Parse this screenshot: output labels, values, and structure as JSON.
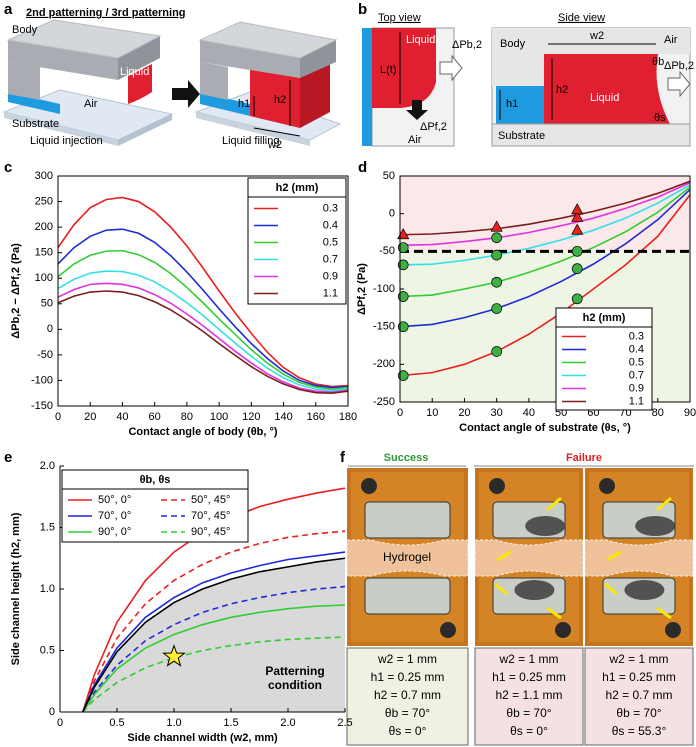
{
  "panel_labels": [
    "a",
    "b",
    "c",
    "d",
    "e",
    "f"
  ],
  "panel_a": {
    "title": "2nd patterning / 3rd patterning",
    "body": "Body",
    "liquid": "Liquid",
    "air": "Air",
    "substrate": "Substrate",
    "h1": "h1",
    "h2": "h2",
    "w2": "w2",
    "caption_left": "Liquid injection",
    "caption_right": "Liquid filling"
  },
  "panel_b": {
    "top_view": "Top view",
    "side_view": "Side view",
    "top_liquid": "Liquid",
    "length": "L(t)",
    "top_dpb": "ΔPb,2",
    "top_dpf": "ΔPf,2",
    "top_air": "Air",
    "body": "Body",
    "w2": "w2",
    "side_air": "Air",
    "theta_b": "θb",
    "side_dpb": "ΔPb,2",
    "h2": "h2",
    "side_liquid": "Liquid",
    "h1": "h1",
    "theta_s": "θs",
    "substrate": "Substrate"
  },
  "chart_data": [
    {
      "type": "line",
      "xlabel": "Contact angle of body (θb, °)",
      "ylabel": "ΔPb,2 − ΔPf,2 (Pa)",
      "legend_title": "h2 (mm)",
      "legend": "upper right",
      "x": [
        0,
        10,
        20,
        30,
        40,
        50,
        60,
        70,
        80,
        90,
        100,
        110,
        120,
        130,
        140,
        150,
        160,
        170,
        180
      ],
      "xlim": [
        0,
        180
      ],
      "xticks": [
        0,
        20,
        40,
        60,
        80,
        100,
        120,
        140,
        160,
        180
      ],
      "ylim": [
        -150,
        300
      ],
      "yticks": [
        -150,
        -100,
        -50,
        0,
        50,
        100,
        150,
        200,
        250,
        300
      ],
      "series": [
        {
          "name": "0.3",
          "color": "#e8201e",
          "values": [
            160,
            205,
            238,
            254,
            258,
            250,
            230,
            200,
            163,
            120,
            75,
            32,
            -8,
            -45,
            -75,
            -95,
            -107,
            -112,
            -110
          ]
        },
        {
          "name": "0.4",
          "color": "#1f2bd6",
          "values": [
            128,
            160,
            182,
            194,
            196,
            188,
            170,
            144,
            112,
            77,
            40,
            5,
            -28,
            -57,
            -82,
            -100,
            -110,
            -114,
            -112
          ]
        },
        {
          "name": "0.5",
          "color": "#33cc33",
          "values": [
            103,
            128,
            145,
            153,
            154,
            146,
            131,
            109,
            82,
            52,
            20,
            -10,
            -40,
            -66,
            -88,
            -104,
            -113,
            -117,
            -114
          ]
        },
        {
          "name": "0.7",
          "color": "#33e0e6",
          "values": [
            80,
            98,
            110,
            114,
            113,
            106,
            93,
            74,
            52,
            27,
            0,
            -27,
            -53,
            -76,
            -95,
            -109,
            -117,
            -120,
            -117
          ]
        },
        {
          "name": "0.9",
          "color": "#e033e0",
          "values": [
            63,
            78,
            88,
            90,
            88,
            81,
            68,
            51,
            30,
            7,
            -18,
            -43,
            -66,
            -87,
            -103,
            -115,
            -121,
            -123,
            -119
          ]
        },
        {
          "name": "1.1",
          "color": "#7a1e1e",
          "values": [
            52,
            65,
            73,
            75,
            73,
            66,
            54,
            38,
            18,
            -4,
            -28,
            -51,
            -73,
            -92,
            -107,
            -118,
            -124,
            -125,
            -121
          ]
        }
      ]
    },
    {
      "type": "line",
      "xlabel": "Contact angle of substrate (θs, °)",
      "ylabel": "ΔPf,2 (Pa)",
      "legend_title": "h2 (mm)",
      "legend": "lower right",
      "x": [
        0,
        10,
        20,
        30,
        40,
        50,
        60,
        70,
        80,
        90
      ],
      "xlim": [
        0,
        90
      ],
      "xticks": [
        0,
        10,
        20,
        30,
        40,
        50,
        60,
        70,
        80,
        90
      ],
      "ylim": [
        -250,
        50
      ],
      "yticks": [
        -250,
        -200,
        -150,
        -100,
        -50,
        0,
        50
      ],
      "threshold": -50,
      "series": [
        {
          "name": "0.3",
          "color": "#e8201e",
          "values": [
            -215,
            -211,
            -200,
            -183,
            -160,
            -132,
            -100,
            -68,
            -30,
            25
          ]
        },
        {
          "name": "0.4",
          "color": "#1f2bd6",
          "values": [
            -150,
            -147,
            -138,
            -126,
            -110,
            -90,
            -67,
            -40,
            -8,
            32
          ]
        },
        {
          "name": "0.5",
          "color": "#33cc33",
          "values": [
            -110,
            -108,
            -100,
            -91,
            -78,
            -63,
            -45,
            -24,
            2,
            35
          ]
        },
        {
          "name": "0.7",
          "color": "#33e0e6",
          "values": [
            -68,
            -67,
            -62,
            -55,
            -46,
            -35,
            -22,
            -6,
            14,
            38
          ]
        },
        {
          "name": "0.9",
          "color": "#e033e0",
          "values": [
            -42,
            -41,
            -37,
            -32,
            -25,
            -16,
            -6,
            7,
            22,
            41
          ]
        },
        {
          "name": "1.1",
          "color": "#7a1e1e",
          "values": [
            -28,
            -27,
            -24,
            -20,
            -14,
            -6,
            3,
            14,
            27,
            43
          ]
        }
      ],
      "points": [
        {
          "marker": "circle",
          "color": "#3cb043",
          "x": [
            1,
            1,
            1,
            1,
            1,
            30,
            30,
            30,
            30,
            30,
            55,
            55,
            55
          ],
          "values": [
            -215,
            -150,
            -110,
            -68,
            -45,
            -183,
            -126,
            -91,
            -55,
            -32,
            -113,
            -73,
            -50
          ]
        },
        {
          "marker": "triangle",
          "color": "#e8201e",
          "x": [
            1,
            30,
            55,
            55,
            55
          ],
          "values": [
            -28,
            -18,
            -22,
            -5,
            5
          ]
        }
      ]
    },
    {
      "type": "line",
      "xlabel": "Side channel width (w2, mm)",
      "ylabel": "Side channel height (h2, mm)",
      "legend_title": "θb, θs",
      "legend": "upper left",
      "x": [
        0.2,
        0.3,
        0.5,
        0.75,
        1.0,
        1.25,
        1.5,
        1.75,
        2.0,
        2.25,
        2.5
      ],
      "xlim": [
        0,
        2.5
      ],
      "xticks": [
        0,
        0.5,
        {
          "value": 1,
          "label": "1.0"
        },
        1.5,
        {
          "value": 2,
          "label": "2.0"
        },
        2.5
      ],
      "ylim": [
        0,
        2
      ],
      "yticks": [
        0,
        0.5,
        {
          "value": 1,
          "label": "1.0"
        },
        1.5,
        {
          "value": 2,
          "label": "2.0"
        }
      ],
      "series": [
        {
          "name": "50°, 0°",
          "color": "#e8201e",
          "dash": false,
          "values": [
            0,
            0.3,
            0.73,
            1.07,
            1.3,
            1.46,
            1.58,
            1.67,
            1.73,
            1.78,
            1.82
          ]
        },
        {
          "name": "50°, 45°",
          "color": "#e8201e",
          "dash": true,
          "values": [
            0,
            0.25,
            0.6,
            0.88,
            1.07,
            1.2,
            1.3,
            1.37,
            1.42,
            1.45,
            1.47
          ]
        },
        {
          "name": "70°, 0°",
          "color": "#1f2bd6",
          "dash": false,
          "values": [
            0,
            0.22,
            0.52,
            0.77,
            0.93,
            1.05,
            1.13,
            1.19,
            1.24,
            1.27,
            1.3
          ]
        },
        {
          "name": "70°, 45°",
          "color": "#1f2bd6",
          "dash": true,
          "values": [
            0,
            0.16,
            0.38,
            0.58,
            0.71,
            0.81,
            0.88,
            0.93,
            0.97,
            1.0,
            1.02
          ]
        },
        {
          "name": "90°, 0°",
          "color": "#33cc33",
          "dash": false,
          "values": [
            0,
            0.14,
            0.35,
            0.52,
            0.63,
            0.71,
            0.77,
            0.81,
            0.84,
            0.86,
            0.87
          ]
        },
        {
          "name": "90°, 45°",
          "color": "#33cc33",
          "dash": true,
          "values": [
            0,
            0.1,
            0.24,
            0.36,
            0.44,
            0.5,
            0.54,
            0.57,
            0.59,
            0.6,
            0.61
          ]
        }
      ],
      "boundary": {
        "color": "#000000",
        "fill": "#d9d9d9",
        "values": [
          0,
          0.2,
          0.49,
          0.73,
          0.89,
          1.0,
          1.08,
          1.14,
          1.18,
          1.22,
          1.25
        ]
      },
      "star": {
        "x": 1.0,
        "y": 0.45,
        "color": "#ffee33"
      },
      "annotation_lines": [
        "Patterning",
        "condition"
      ]
    }
  ],
  "panel_f": {
    "success": "Success",
    "failure": "Failure",
    "hydrogel": "Hydrogel",
    "conditions": [
      [
        "w2 = 1 mm",
        "h1 = 0.25 mm",
        "h2 = 0.7 mm",
        "θb = 70°",
        "θs = 0°"
      ],
      [
        "w2 = 1 mm",
        "h1 = 0.25 mm",
        "h2 = 1.1 mm",
        "θb = 70°",
        "θs = 0°"
      ],
      [
        "w2 = 1 mm",
        "h1 = 0.25 mm",
        "h2 = 0.7 mm",
        "θb = 70°",
        "θs = 55.3°"
      ]
    ]
  }
}
